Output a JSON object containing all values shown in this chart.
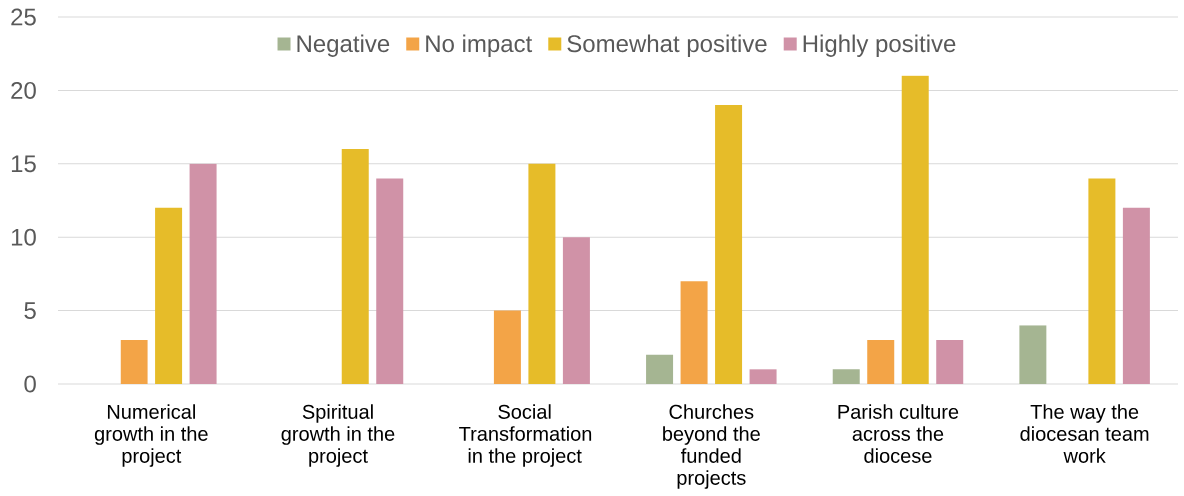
{
  "chart_data": {
    "type": "bar",
    "categories": [
      "Numerical growth in the project",
      "Spiritual growth in the project",
      "Social Transformation in the project",
      "Churches beyond the funded projects",
      "Parish culture across the diocese",
      "The way the diocesan team work"
    ],
    "series": [
      {
        "name": "Negative",
        "color": "#a5b592",
        "values": [
          0,
          0,
          0,
          2,
          1,
          4
        ]
      },
      {
        "name": "No impact",
        "color": "#f3a447",
        "values": [
          3,
          0,
          5,
          7,
          3,
          0
        ]
      },
      {
        "name": "Somewhat positive",
        "color": "#e6bc29",
        "values": [
          12,
          16,
          15,
          19,
          21,
          14
        ]
      },
      {
        "name": "Highly positive",
        "color": "#d092a7",
        "values": [
          15,
          14,
          10,
          1,
          3,
          12
        ]
      }
    ],
    "ylim": [
      0,
      25
    ],
    "yticks": [
      0,
      5,
      10,
      15,
      20,
      25
    ],
    "grid": "y",
    "legend": "top"
  }
}
